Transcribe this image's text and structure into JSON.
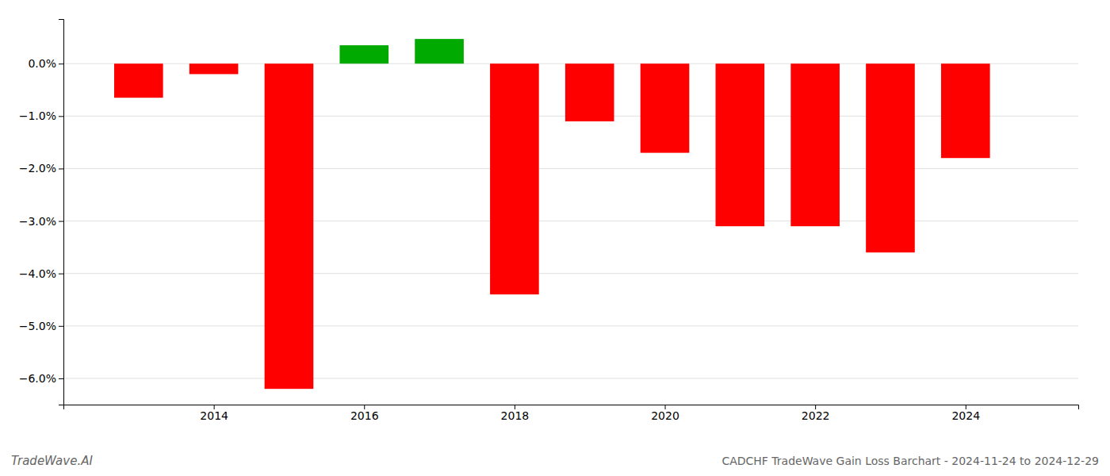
{
  "chart_data": {
    "type": "bar",
    "title": "CADCHF TradeWave Gain Loss Barchart - 2024-11-24 to 2024-12-29",
    "annotations": [
      "TradeWave.AI"
    ],
    "x": [
      2013,
      2014,
      2015,
      2016,
      2017,
      2018,
      2019,
      2020,
      2021,
      2022,
      2023,
      2024
    ],
    "values": [
      -0.0065,
      -0.002,
      -0.062,
      0.0035,
      0.0047,
      -0.044,
      -0.011,
      -0.017,
      -0.031,
      -0.031,
      -0.036,
      -0.018
    ],
    "colors": [
      "#ff0000",
      "#ff0000",
      "#ff0000",
      "#00aa00",
      "#00aa00",
      "#ff0000",
      "#ff0000",
      "#ff0000",
      "#ff0000",
      "#ff0000",
      "#ff0000",
      "#ff0000"
    ],
    "xlim": [
      2012.0,
      2025.5
    ],
    "xticks": [
      2014,
      2016,
      2018,
      2020,
      2022,
      2024
    ],
    "ylim": [
      -0.065,
      0.0085
    ],
    "yticks": [
      {
        "value": -0.06,
        "label": "−6.0%"
      },
      {
        "value": -0.05,
        "label": "−5.0%"
      },
      {
        "value": -0.04,
        "label": "−4.0%"
      },
      {
        "value": -0.03,
        "label": "−3.0%"
      },
      {
        "value": -0.02,
        "label": "−2.0%"
      },
      {
        "value": -0.01,
        "label": "−1.0%"
      },
      {
        "value": 0.0,
        "label": "0.0%"
      }
    ],
    "grid": true
  }
}
